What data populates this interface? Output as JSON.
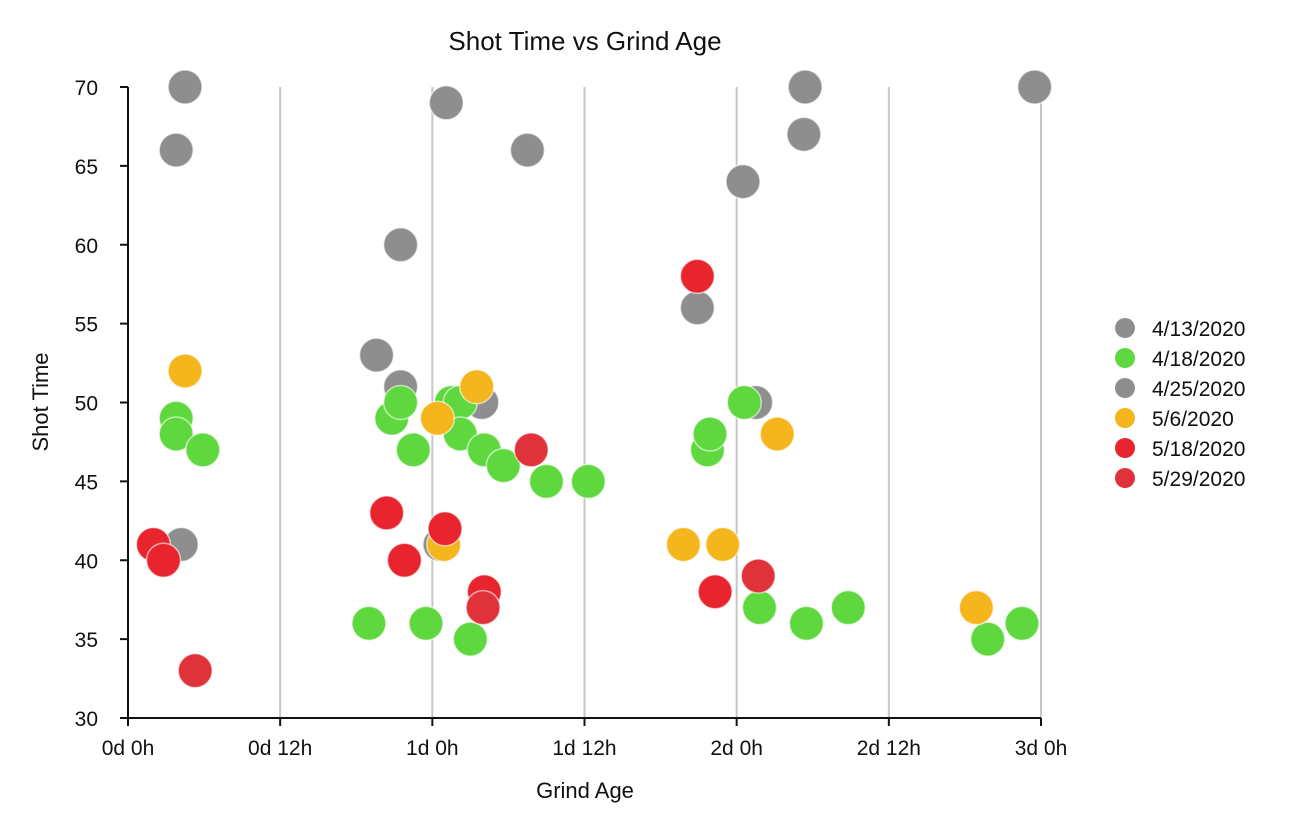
{
  "chart_data": {
    "type": "scatter",
    "title": "Shot Time vs Grind Age",
    "xlabel": "Grind Age",
    "ylabel": "Shot Time",
    "x_unit": "hours",
    "xlim": [
      0,
      72
    ],
    "ylim": [
      30,
      70
    ],
    "x_ticks": [
      {
        "value": 0,
        "label": "0d 0h"
      },
      {
        "value": 12,
        "label": "0d 12h"
      },
      {
        "value": 24,
        "label": "1d 0h"
      },
      {
        "value": 36,
        "label": "1d 12h"
      },
      {
        "value": 48,
        "label": "2d 0h"
      },
      {
        "value": 60,
        "label": "2d 12h"
      },
      {
        "value": 72,
        "label": "3d 0h"
      }
    ],
    "y_ticks": [
      {
        "value": 30,
        "label": "30"
      },
      {
        "value": 35,
        "label": "35"
      },
      {
        "value": 40,
        "label": "40"
      },
      {
        "value": 45,
        "label": "45"
      },
      {
        "value": 50,
        "label": "50"
      },
      {
        "value": 55,
        "label": "55"
      },
      {
        "value": 60,
        "label": "60"
      },
      {
        "value": 65,
        "label": "65"
      },
      {
        "value": 70,
        "label": "70"
      }
    ],
    "grid": true,
    "grid_direction": "vertical",
    "legend_position": "right",
    "series": [
      {
        "name": "4/13/2020",
        "color": "#8e8e8e",
        "points": [
          [
            3.8,
            66
          ],
          [
            4.5,
            70
          ],
          [
            4.2,
            41
          ],
          [
            19.6,
            53
          ],
          [
            21.5,
            60
          ],
          [
            21.5,
            51
          ],
          [
            25.1,
            69
          ],
          [
            24.6,
            41
          ],
          [
            27.9,
            50
          ],
          [
            31.5,
            66
          ],
          [
            44.9,
            56
          ],
          [
            48.5,
            64
          ],
          [
            53.4,
            70
          ],
          [
            53.3,
            67
          ],
          [
            71.5,
            70
          ],
          [
            49.5,
            50
          ]
        ]
      },
      {
        "name": "4/18/2020",
        "color": "#5fd83f",
        "points": [
          [
            3.8,
            49
          ],
          [
            3.8,
            48
          ],
          [
            5.9,
            47
          ],
          [
            19.0,
            36
          ],
          [
            20.8,
            49
          ],
          [
            21.5,
            50
          ],
          [
            22.5,
            47
          ],
          [
            23.5,
            36
          ],
          [
            25.5,
            50
          ],
          [
            26.2,
            50
          ],
          [
            26.2,
            48
          ],
          [
            27.0,
            35
          ],
          [
            28.1,
            47
          ],
          [
            29.6,
            46
          ],
          [
            33.0,
            45
          ],
          [
            36.3,
            45
          ],
          [
            45.7,
            47
          ],
          [
            45.9,
            48
          ],
          [
            48.6,
            50
          ],
          [
            49.8,
            37
          ],
          [
            53.5,
            36
          ],
          [
            56.8,
            37
          ],
          [
            67.8,
            35
          ],
          [
            70.5,
            36
          ]
        ]
      },
      {
        "name": "4/25/2020",
        "color": "#8e8e8e",
        "points": []
      },
      {
        "name": "5/6/2020",
        "color": "#f5b51c",
        "points": [
          [
            4.5,
            52
          ],
          [
            24.9,
            41
          ],
          [
            24.4,
            49
          ],
          [
            27.5,
            51
          ],
          [
            43.8,
            41
          ],
          [
            46.9,
            41
          ],
          [
            51.2,
            48
          ],
          [
            66.9,
            37
          ]
        ]
      },
      {
        "name": "5/18/2020",
        "color": "#e8252e",
        "points": [
          [
            2.0,
            41
          ],
          [
            2.8,
            40
          ],
          [
            20.4,
            43
          ],
          [
            21.8,
            40
          ],
          [
            25.0,
            42
          ],
          [
            28.1,
            38
          ],
          [
            44.9,
            58
          ],
          [
            46.3,
            38
          ]
        ]
      },
      {
        "name": "5/29/2020",
        "color": "#e0323a",
        "points": [
          [
            5.3,
            33
          ],
          [
            28.0,
            37
          ],
          [
            31.8,
            47
          ],
          [
            49.7,
            39
          ]
        ]
      }
    ]
  }
}
